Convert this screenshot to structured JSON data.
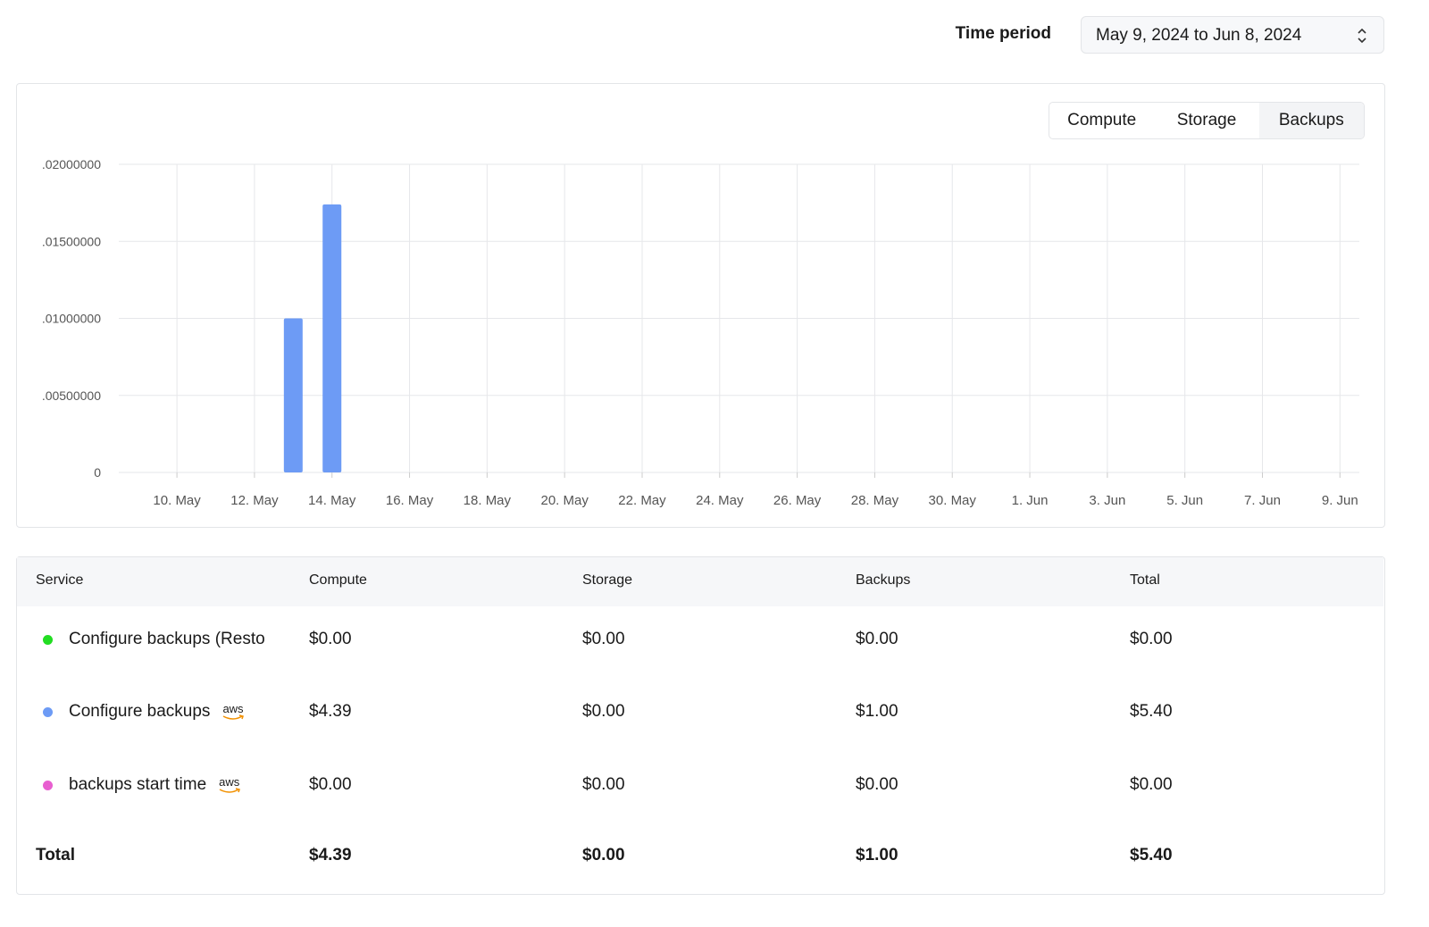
{
  "header": {
    "time_period_label": "Time period",
    "time_period_value": "May 9, 2024 to Jun 8, 2024"
  },
  "tabs": {
    "items": [
      "Compute",
      "Storage",
      "Backups"
    ],
    "active": 2
  },
  "chart_data": {
    "type": "bar",
    "categories": [
      null,
      "10. May",
      null,
      "12. May",
      null,
      "14. May",
      null,
      "16. May",
      null,
      "18. May",
      null,
      "20. May",
      null,
      "22. May",
      null,
      "24. May",
      null,
      "26. May",
      null,
      "28. May",
      null,
      "30. May",
      null,
      "1. Jun",
      null,
      "3. Jun",
      null,
      "5. Jun",
      null,
      "7. Jun",
      null,
      "9. Jun"
    ],
    "values": [
      0,
      0,
      0,
      0,
      0.01,
      0.0174,
      0,
      0,
      0,
      0,
      0,
      0,
      0,
      0,
      0,
      0,
      0,
      0,
      0,
      0,
      0,
      0,
      0,
      0,
      0,
      0,
      0,
      0,
      0,
      0,
      0,
      0
    ],
    "color": "#6d9bf5",
    "ylim": [
      0,
      0.02
    ],
    "yticks": [
      0,
      {
        "value": 0.005,
        "label": ".00500000"
      },
      {
        "value": 0.01,
        "label": ".01000000"
      },
      {
        "value": 0.015,
        "label": ".01500000"
      },
      {
        "value": 0.02,
        "label": ".02000000"
      }
    ],
    "grid": true
  },
  "table": {
    "columns": [
      "Service",
      "Compute",
      "Storage",
      "Backups",
      "Total"
    ],
    "rows": [
      {
        "name": "Configure backups (Resto",
        "color": "#22dd22",
        "cells": [
          "$0.00",
          "$0.00",
          "$0.00",
          "$0.00"
        ]
      },
      {
        "name": "Configure backups",
        "color": "#6d9bf5",
        "provider": "aws",
        "cells": [
          "$4.39",
          "$0.00",
          "$1.00",
          "$5.40"
        ]
      },
      {
        "name": "backups start time",
        "color": "#e85fd0",
        "provider": "aws",
        "cells": [
          "$0.00",
          "$0.00",
          "$0.00",
          "$0.00"
        ]
      }
    ],
    "total": {
      "label": "Total",
      "cells": [
        "$4.39",
        "$0.00",
        "$1.00",
        "$5.40"
      ]
    }
  }
}
